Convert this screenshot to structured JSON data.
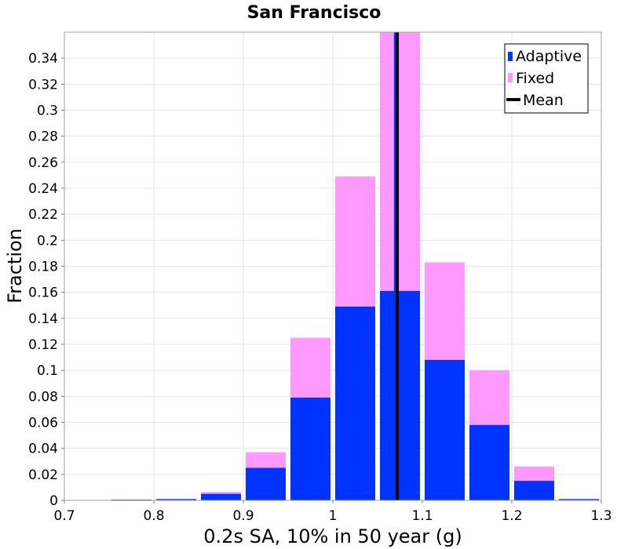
{
  "chart_data": {
    "type": "bar",
    "title": "San Francisco",
    "xlabel": "0.2s SA, 10% in 50 year (g)",
    "ylabel": "Fraction",
    "xlim": [
      0.7,
      1.3
    ],
    "ylim": [
      0,
      0.36
    ],
    "xticks": [
      "0.7",
      "0.8",
      "0.9",
      "1",
      "1.1",
      "1.2",
      "1.3"
    ],
    "yticks": [
      "0",
      "0.02",
      "0.04",
      "0.06",
      "0.08",
      "0.1",
      "0.12",
      "0.14",
      "0.16",
      "0.18",
      "0.2",
      "0.22",
      "0.24",
      "0.26",
      "0.28",
      "0.3",
      "0.32",
      "0.34"
    ],
    "bin_width": 0.05,
    "bin_centers": [
      0.725,
      0.775,
      0.825,
      0.875,
      0.925,
      0.975,
      1.025,
      1.075,
      1.125,
      1.175,
      1.225,
      1.275
    ],
    "series": [
      {
        "name": "Adaptive",
        "color": "#0033ff",
        "values": [
          0.0,
          0.0005,
          0.001,
          0.005,
          0.025,
          0.079,
          0.149,
          0.161,
          0.108,
          0.058,
          0.015,
          0.001
        ]
      },
      {
        "name": "Fixed",
        "color": "#ff99ff",
        "values": [
          0.0,
          0.0005,
          0.001,
          0.0065,
          0.037,
          0.125,
          0.249,
          0.36,
          0.183,
          0.1,
          0.026,
          0.001
        ]
      }
    ],
    "means": [
      {
        "series": "Adaptive",
        "x": 1.07,
        "color": "#0033ff"
      },
      {
        "series": "Fixed",
        "x": 1.072,
        "color": "#000000"
      }
    ],
    "legend": {
      "position": "top-right",
      "entries": [
        {
          "label": "Adaptive",
          "color": "#0033ff"
        },
        {
          "label": "Fixed",
          "color": "#ff99ff"
        },
        {
          "label": "Mean",
          "color": "#000000"
        }
      ]
    },
    "grid": true
  }
}
